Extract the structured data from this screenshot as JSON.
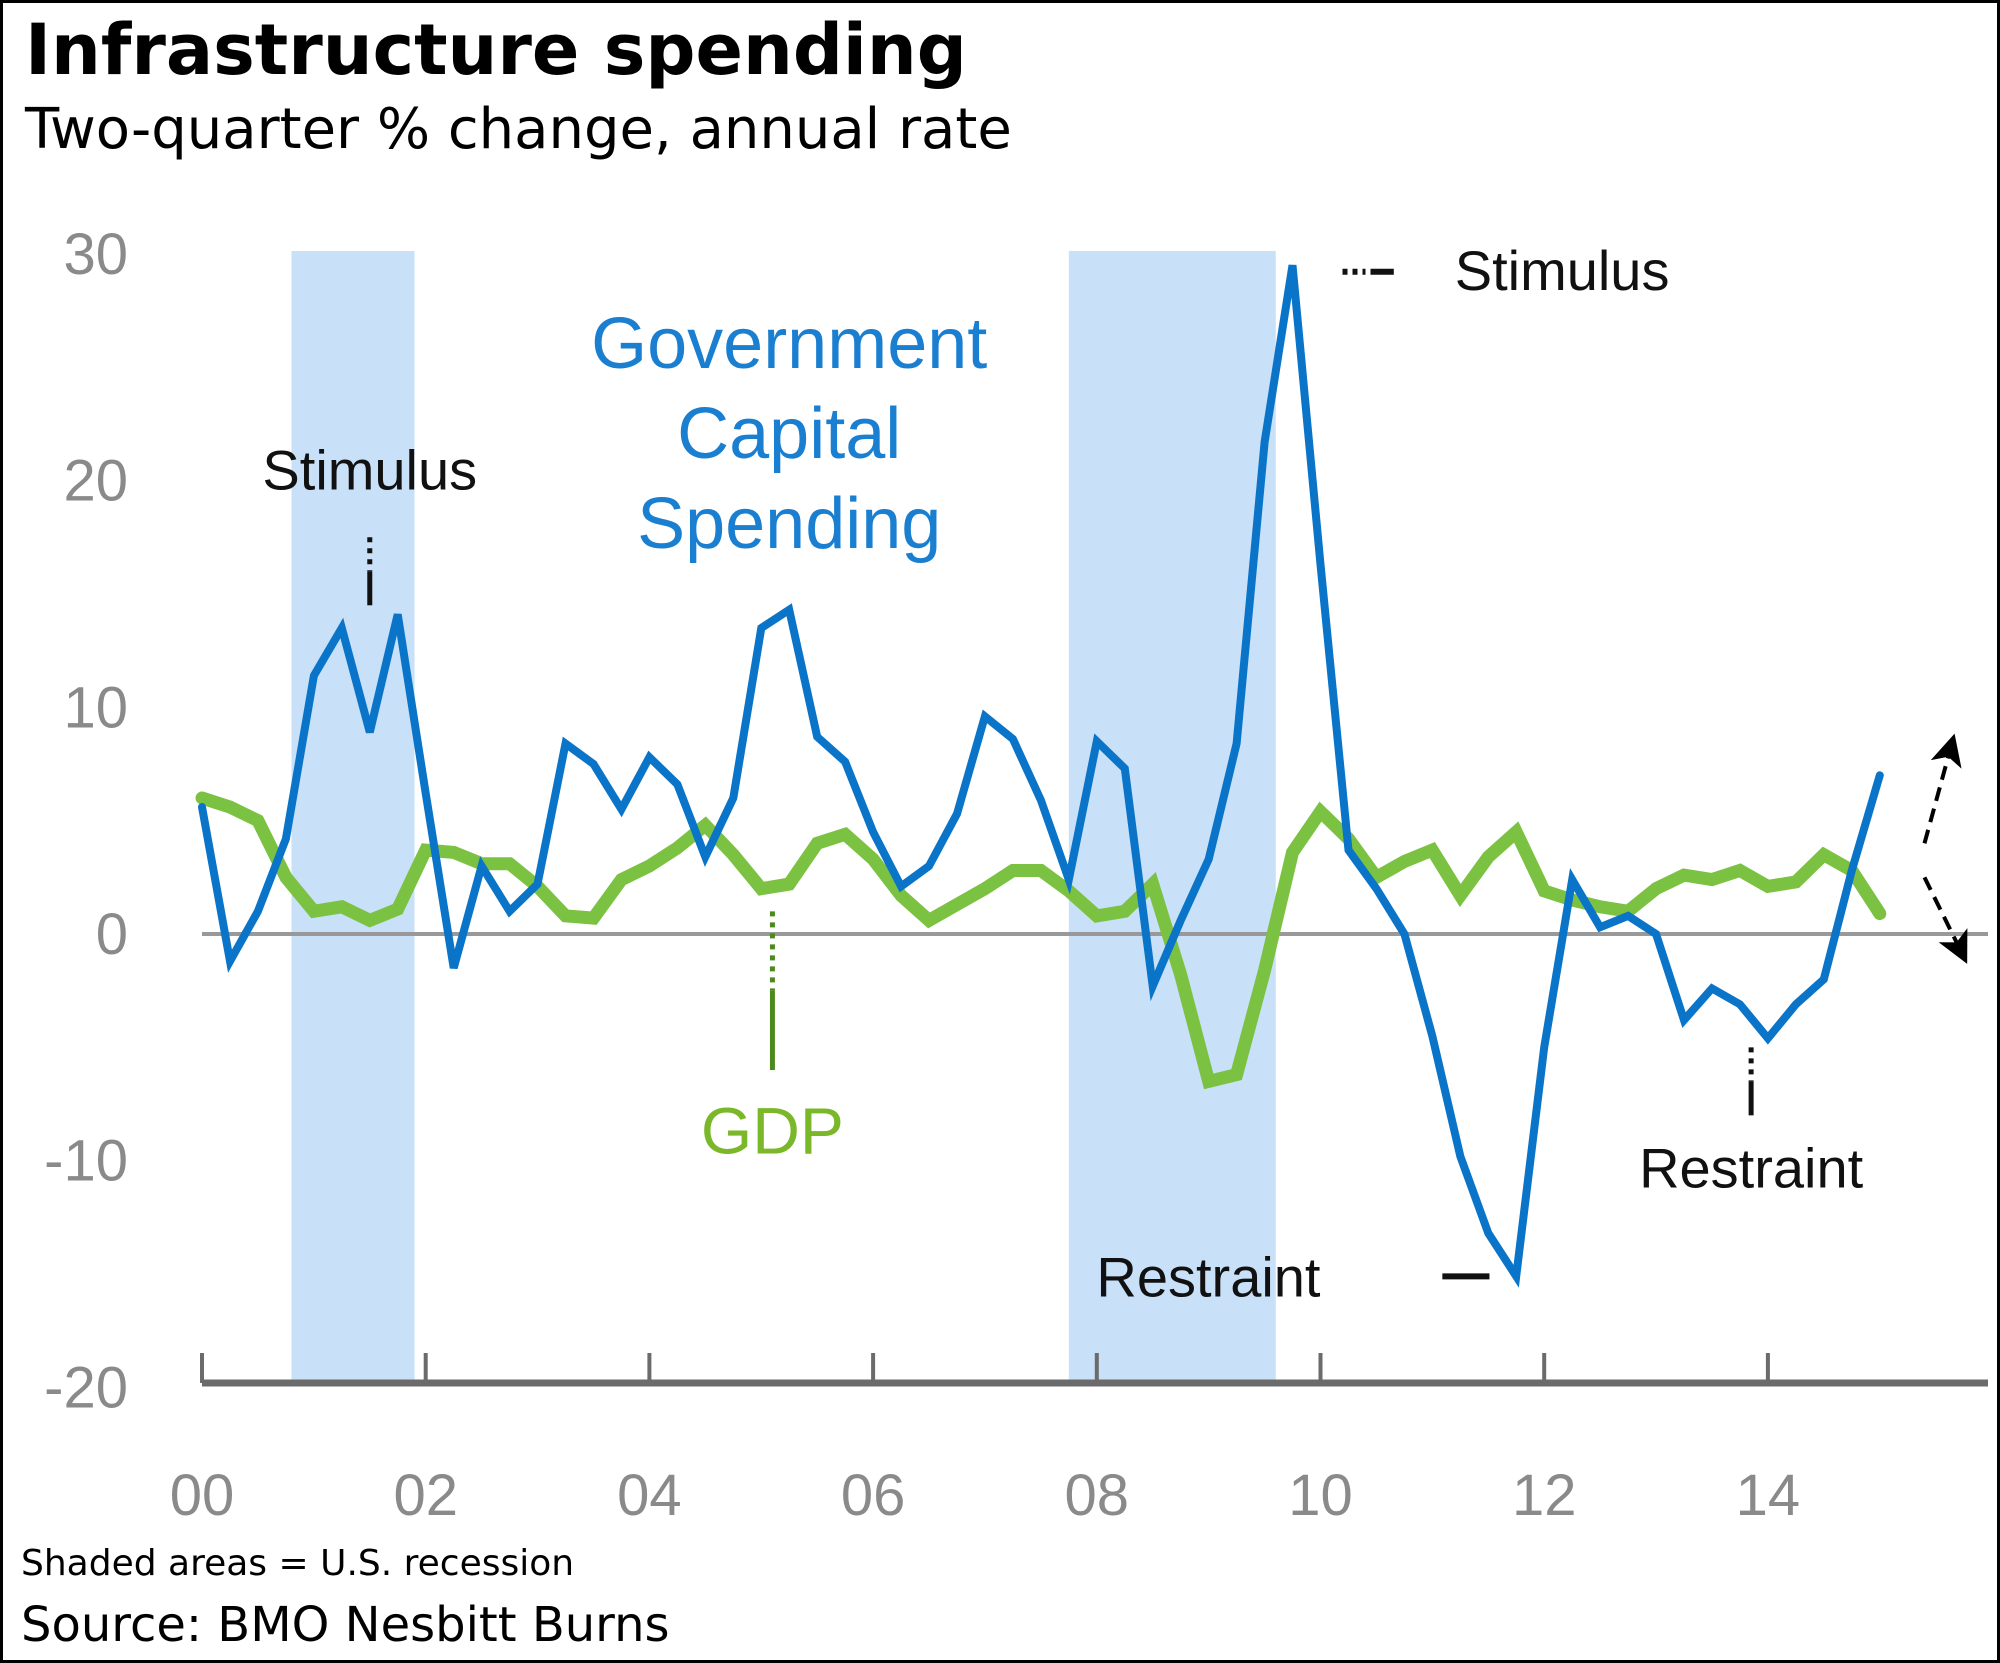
{
  "title": "Infrastructure spending",
  "subtitle": "Two-quarter % change, annual rate",
  "note": "Shaded areas = U.S. recession",
  "source": "Source: BMO Nesbitt Burns",
  "colors": {
    "government": "#0a74c9",
    "gdp": "#7cc242",
    "recession": "#c8e0f8",
    "axis": "#6b6b6b",
    "zero_line": "#999999",
    "tick_label": "#8a8a8a"
  },
  "chart_data": {
    "type": "line",
    "title": "Infrastructure spending",
    "subtitle": "Two-quarter % change, annual rate",
    "xlabel": "",
    "ylabel": "",
    "x_start": 2000.0,
    "x_step": 0.25,
    "xlim": [
      2000,
      2016.1
    ],
    "ylim": [
      -20,
      30
    ],
    "yticks": [
      30,
      20,
      10,
      0,
      -10,
      -20
    ],
    "ytick_labels": [
      "30",
      "20",
      "10",
      "0",
      "-10",
      "-20"
    ],
    "xticks": [
      2000,
      2002,
      2004,
      2006,
      2008,
      2010,
      2012,
      2014
    ],
    "xtick_labels": [
      "00",
      "02",
      "04",
      "06",
      "08",
      "10",
      "12",
      "14"
    ],
    "grid": false,
    "legend": "none (direct labels)",
    "recessions": [
      {
        "start": 2000.8,
        "end": 2001.9
      },
      {
        "start": 2007.75,
        "end": 2009.6
      }
    ],
    "series": [
      {
        "name": "Government Capital Spending",
        "color": "#0a74c9",
        "values": [
          5.6,
          -1.2,
          1.0,
          4.2,
          11.4,
          13.5,
          8.9,
          14.1,
          6.2,
          -1.5,
          3.0,
          1.0,
          2.2,
          8.4,
          7.5,
          5.5,
          7.8,
          6.6,
          3.4,
          6.0,
          13.5,
          14.3,
          8.7,
          7.6,
          4.5,
          2.1,
          3.0,
          5.3,
          9.6,
          8.6,
          5.9,
          2.4,
          8.5,
          7.3,
          -2.3,
          0.6,
          3.3,
          8.4,
          21.7,
          29.5,
          16.3,
          3.7,
          2.0,
          0.0,
          -4.5,
          -9.8,
          -13.2,
          -15.1,
          -5.0,
          2.4,
          0.3,
          0.8,
          0.0,
          -3.8,
          -2.4,
          -3.1,
          -4.6,
          -3.1,
          -2.0,
          2.8,
          7.0
        ]
      },
      {
        "name": "GDP",
        "color": "#7cc242",
        "values": [
          6.0,
          5.6,
          5.0,
          2.5,
          1.0,
          1.2,
          0.6,
          1.1,
          3.7,
          3.6,
          3.1,
          3.1,
          2.1,
          0.8,
          0.7,
          2.4,
          3.0,
          3.8,
          4.8,
          3.5,
          2.0,
          2.2,
          4.0,
          4.4,
          3.3,
          1.7,
          0.6,
          1.3,
          2.0,
          2.8,
          2.8,
          1.9,
          0.8,
          1.0,
          2.2,
          -1.8,
          -6.5,
          -6.2,
          -1.6,
          3.6,
          5.4,
          4.2,
          2.5,
          3.2,
          3.7,
          1.7,
          3.4,
          4.5,
          1.9,
          1.5,
          1.2,
          1.0,
          2.0,
          2.6,
          2.4,
          2.8,
          2.1,
          2.3,
          3.5,
          2.8,
          0.9
        ]
      }
    ],
    "annotations": [
      {
        "text": "Stimulus",
        "x": 2001.5,
        "y": 20.5,
        "pointer": "vertical-dotted",
        "pointer_from": 17.5,
        "pointer_to": 14.5
      },
      {
        "text": "Stimulus",
        "x": 2011.2,
        "y": 29.3,
        "pointer": "horizontal-dotted-left",
        "x_from": 2010.0,
        "x_to": 2010.7
      },
      {
        "text": "Government Capital Spending",
        "lines": [
          "Government",
          "Capital",
          "Spending"
        ],
        "x": 2005.25,
        "y": 23.5,
        "color": "#1a7fd0"
      },
      {
        "text": "GDP",
        "x": 2005.1,
        "y": -8.8,
        "pointer": "vertical-dotted-green",
        "pointer_from": 1.0,
        "pointer_to": -6.0,
        "color": "#7ab829"
      },
      {
        "text": "Restraint",
        "x": 2010.0,
        "y": -15.1,
        "pointer": "horizontal-right",
        "x_from": 2011.0,
        "x_to": 2011.6
      },
      {
        "text": "Restraint",
        "x": 2013.85,
        "y": -10.3,
        "pointer": "vertical-dotted",
        "pointer_from": -5.0,
        "pointer_to": -8.0
      }
    ],
    "outlook_arrows": [
      {
        "direction": "up",
        "style": "dashed",
        "from": [
          2015.4,
          4.0
        ],
        "to": [
          2015.65,
          8.5
        ]
      },
      {
        "direction": "down",
        "style": "dashed",
        "from": [
          2015.4,
          2.5
        ],
        "to": [
          2015.75,
          -1.0
        ]
      }
    ]
  }
}
